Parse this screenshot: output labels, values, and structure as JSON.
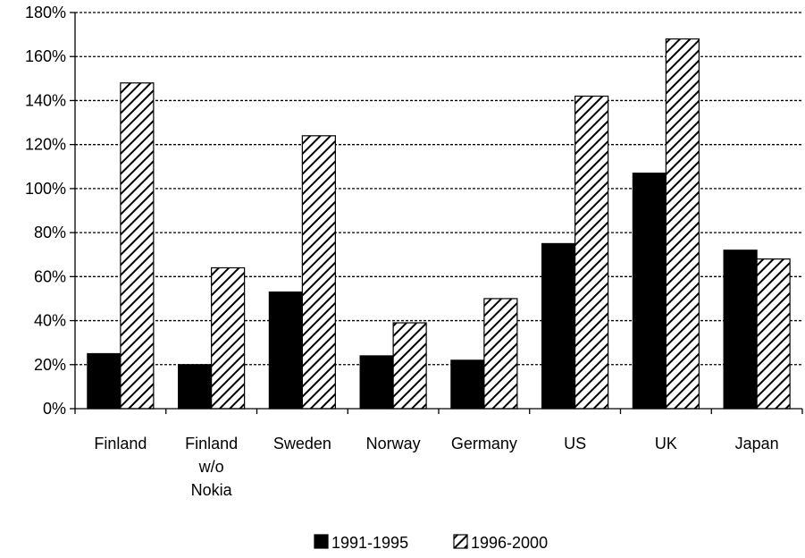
{
  "chart_data": {
    "type": "bar",
    "categories": [
      [
        "Finland"
      ],
      [
        "Finland",
        "w/o",
        "Nokia"
      ],
      [
        "Sweden"
      ],
      [
        "Norway"
      ],
      [
        "Germany"
      ],
      [
        "US"
      ],
      [
        "UK"
      ],
      [
        "Japan"
      ]
    ],
    "series": [
      {
        "name": "1991-1995",
        "values": [
          25,
          20,
          53,
          24,
          22,
          75,
          107,
          72
        ],
        "fill": "#000000",
        "pattern": "solid"
      },
      {
        "name": "1996-2000",
        "values": [
          148,
          64,
          124,
          39,
          50,
          142,
          168,
          68
        ],
        "fill": "#ffffff",
        "pattern": "diagonal-hatch"
      }
    ],
    "ylim": [
      0,
      180
    ],
    "y_ticks": [
      "0%",
      "20%",
      "40%",
      "60%",
      "80%",
      "100%",
      "120%",
      "140%",
      "160%",
      "180%"
    ],
    "y_unit": "%",
    "grid": true,
    "legend_position": "bottom-center",
    "title": "",
    "xlabel": "",
    "ylabel": ""
  }
}
